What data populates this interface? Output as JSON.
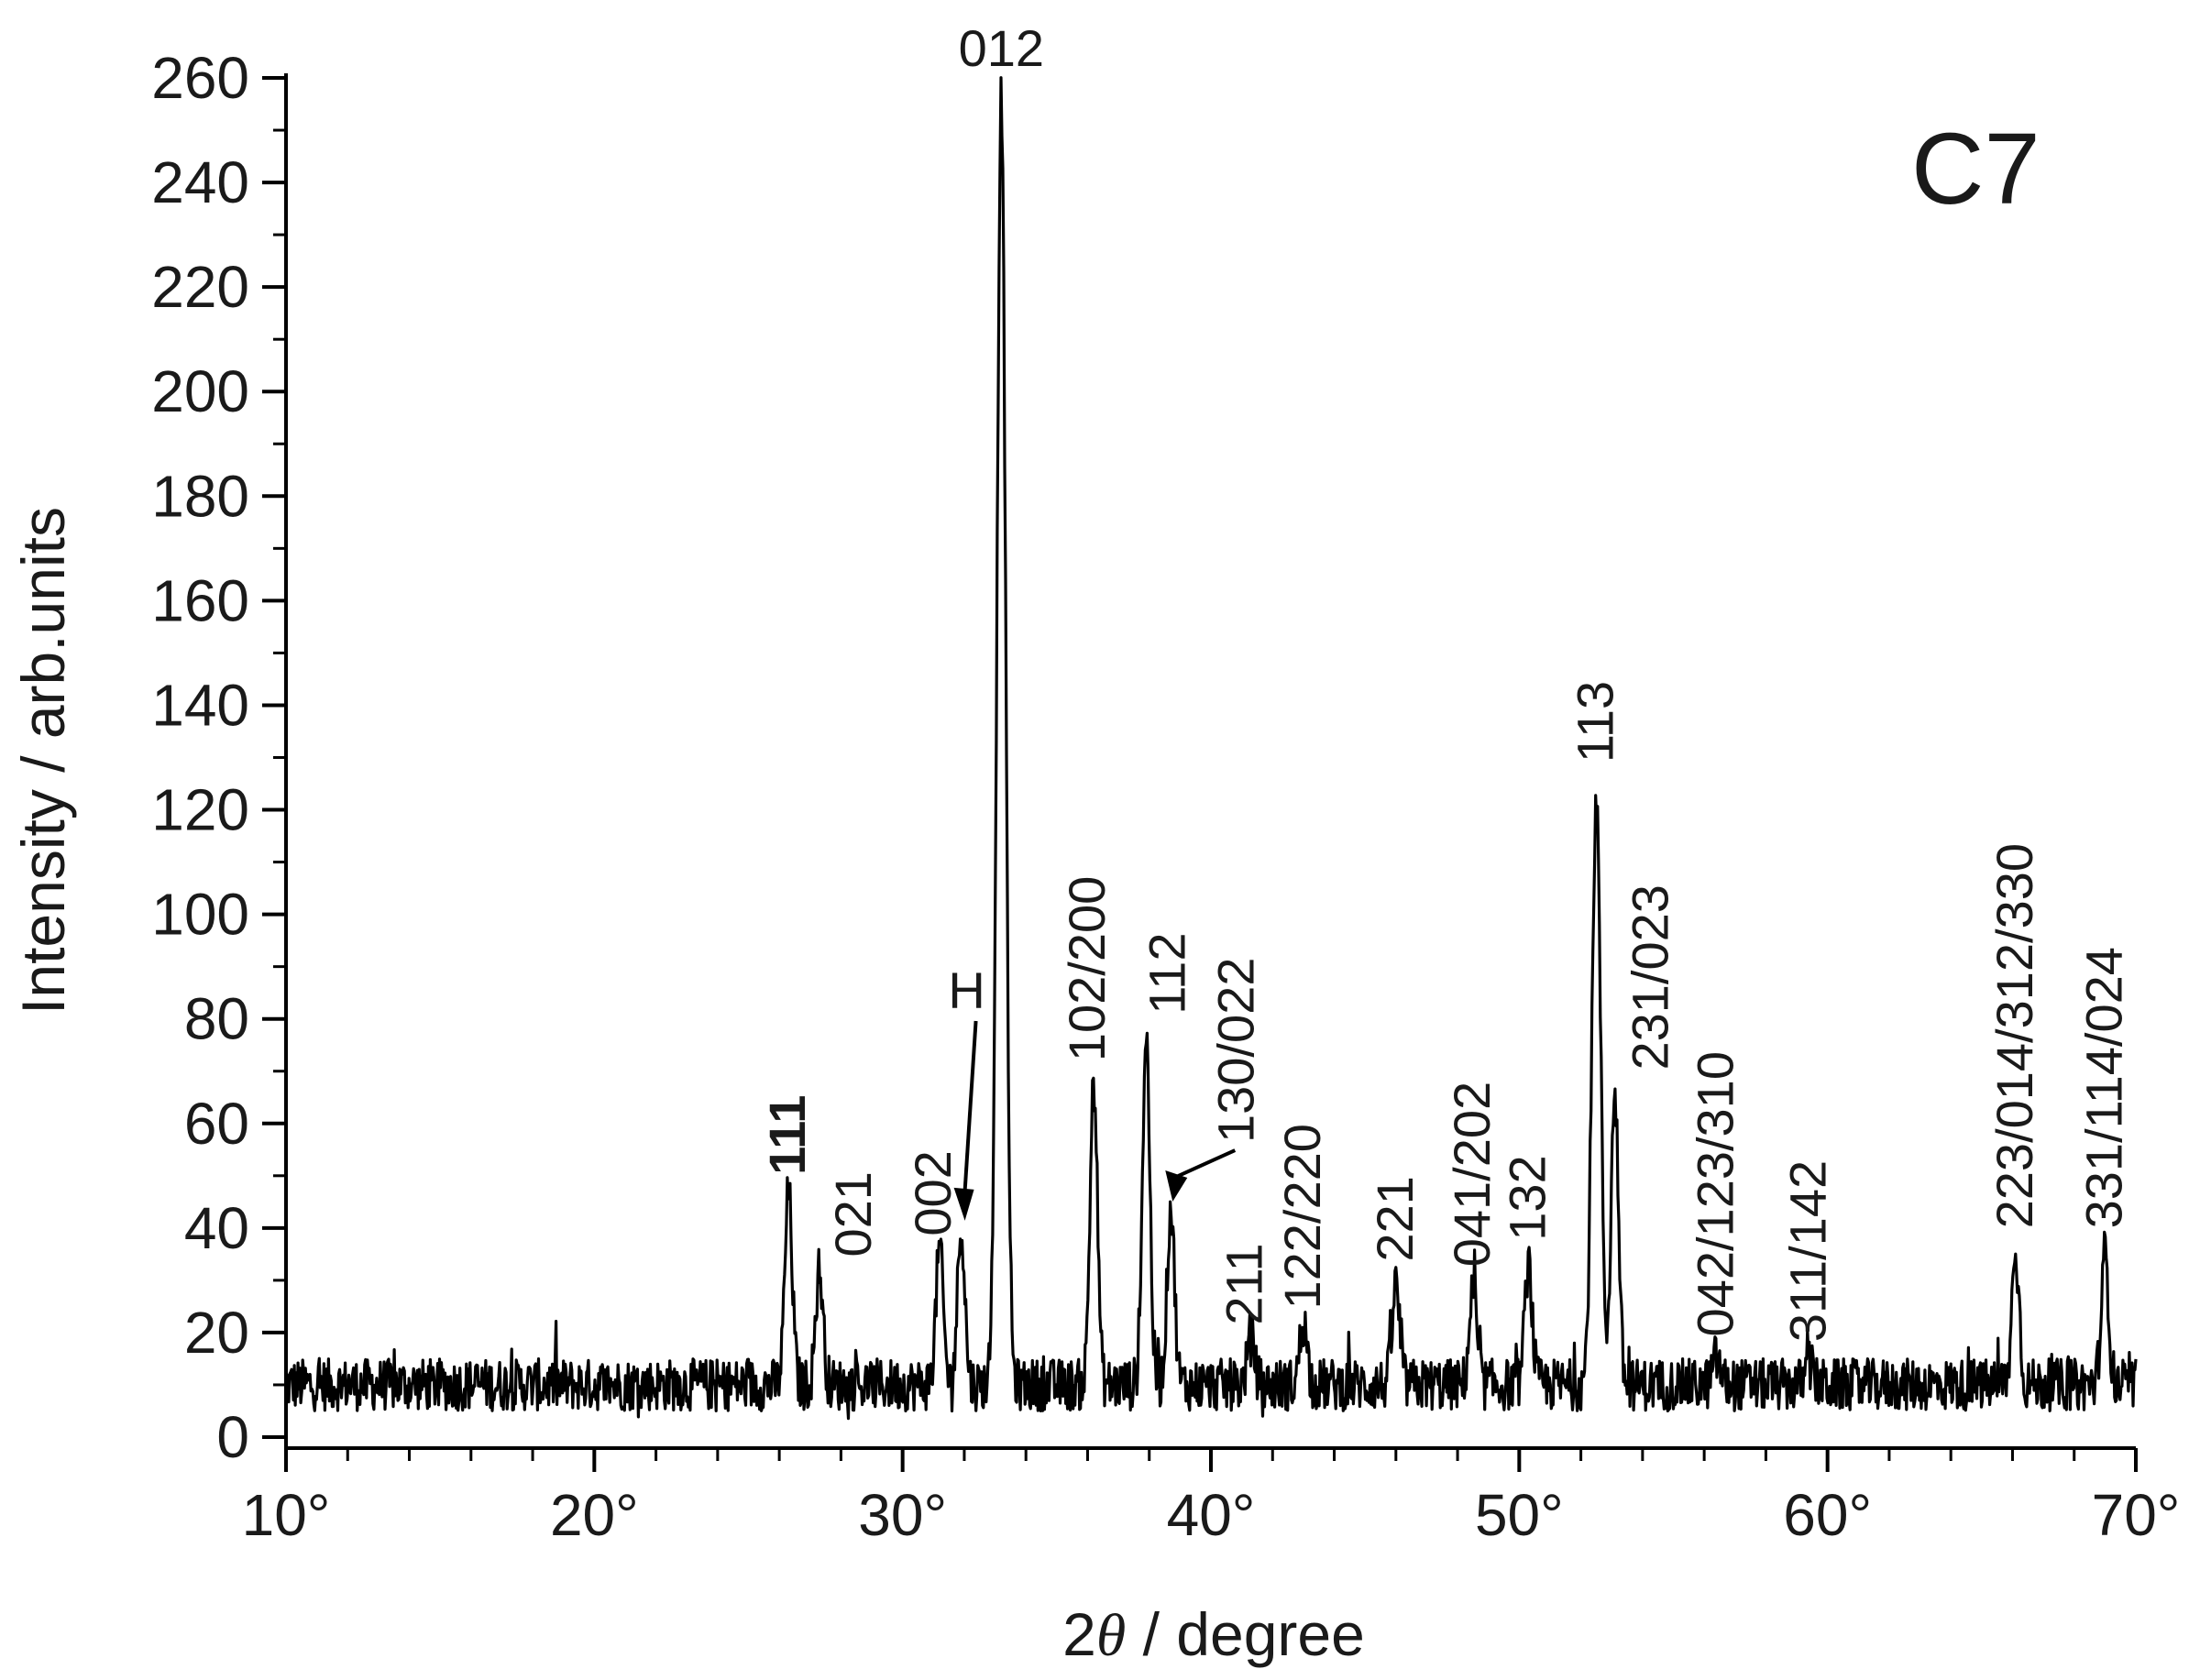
{
  "chart_data": {
    "type": "line",
    "panel_label": "C7",
    "xlabel_prefix": "2",
    "xlabel_symbol": "θ",
    "xlabel_suffix": " / degree",
    "ylabel": "Intensity / arb.units",
    "xlim": [
      10,
      70
    ],
    "ylim": [
      0,
      260
    ],
    "x_ticks": [
      {
        "value": 10,
        "label": "10°"
      },
      {
        "value": 20,
        "label": "20°"
      },
      {
        "value": 30,
        "label": "30°"
      },
      {
        "value": 40,
        "label": "40°"
      },
      {
        "value": 50,
        "label": "50°"
      },
      {
        "value": 60,
        "label": "60°"
      },
      {
        "value": 70,
        "label": "70°"
      }
    ],
    "y_ticks": [
      {
        "value": 0,
        "label": "0"
      },
      {
        "value": 20,
        "label": "20"
      },
      {
        "value": 40,
        "label": "40"
      },
      {
        "value": 60,
        "label": "60"
      },
      {
        "value": 80,
        "label": "80"
      },
      {
        "value": 100,
        "label": "100"
      },
      {
        "value": 120,
        "label": "120"
      },
      {
        "value": 140,
        "label": "140"
      },
      {
        "value": 160,
        "label": "160"
      },
      {
        "value": 180,
        "label": "180"
      },
      {
        "value": 200,
        "label": "200"
      },
      {
        "value": 220,
        "label": "220"
      },
      {
        "value": 240,
        "label": "240"
      },
      {
        "value": 260,
        "label": "260"
      }
    ],
    "baseline": 10,
    "series": [
      {
        "color": "#000000",
        "peaks": [
          {
            "x": 26.3,
            "y": 47,
            "label": "111",
            "bold": true
          },
          {
            "x": 27.3,
            "y": 32,
            "label": "021"
          },
          {
            "x": 31.2,
            "y": 36,
            "label": "002"
          },
          {
            "x": 31.9,
            "y": 40,
            "label": "H",
            "arrow": true
          },
          {
            "x": 33.2,
            "y": 256,
            "label": "012"
          },
          {
            "x": 36.2,
            "y": 68,
            "label": "102/200"
          },
          {
            "x": 37.9,
            "y": 77,
            "label": "112"
          },
          {
            "x": 38.7,
            "y": 44,
            "label": "130/022",
            "arrow": true
          },
          {
            "x": 41.3,
            "y": 19,
            "label": "211"
          },
          {
            "x": 43.0,
            "y": 22,
            "label": "122/220"
          },
          {
            "x": 46.0,
            "y": 29,
            "label": "221"
          },
          {
            "x": 48.5,
            "y": 28,
            "label": "041/202"
          },
          {
            "x": 50.3,
            "y": 33,
            "label": "132"
          },
          {
            "x": 52.5,
            "y": 122,
            "label": "113"
          },
          {
            "x": 53.1,
            "y": 66,
            "label": "231/023"
          },
          {
            "x": 56.4,
            "y": 15,
            "label": "042/123/310"
          },
          {
            "x": 59.4,
            "y": 14,
            "label": "311/142"
          },
          {
            "x": 66.1,
            "y": 35,
            "label": "223/014/312/330"
          },
          {
            "x": 69.0,
            "y": 35,
            "label": "331/114/024"
          }
        ]
      }
    ]
  }
}
